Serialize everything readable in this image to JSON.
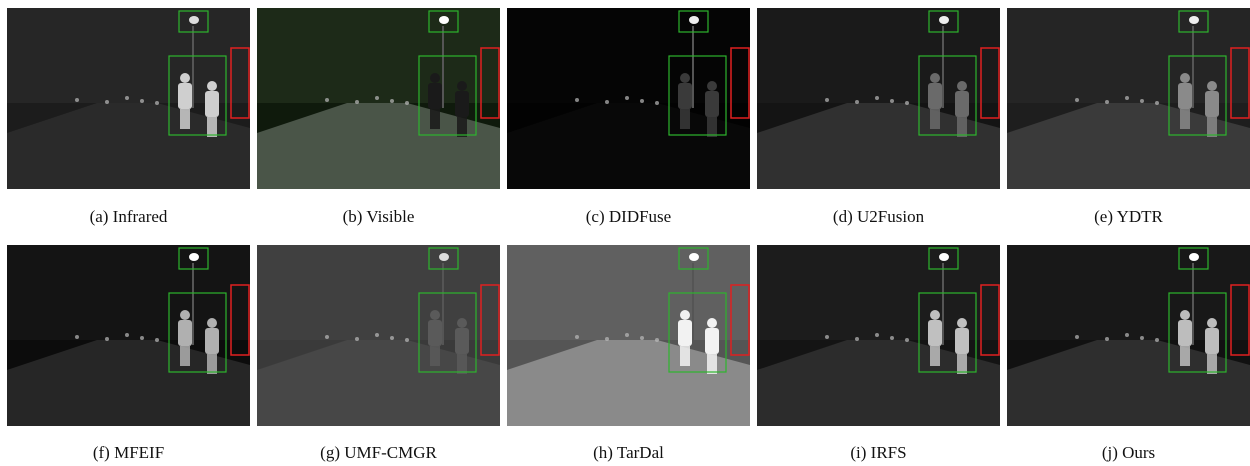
{
  "figure": {
    "panels": [
      {
        "caption": "(a) Infrared"
      },
      {
        "caption": "(b) Visible"
      },
      {
        "caption": "(c) DIDFuse"
      },
      {
        "caption": "(d) U2Fusion"
      },
      {
        "caption": "(e) YDTR"
      },
      {
        "caption": "(f) MFEIF"
      },
      {
        "caption": "(g) UMF-CMGR"
      },
      {
        "caption": "(h) TarDal"
      },
      {
        "caption": "(i) IRFS"
      },
      {
        "caption": "(j) Ours"
      }
    ]
  }
}
